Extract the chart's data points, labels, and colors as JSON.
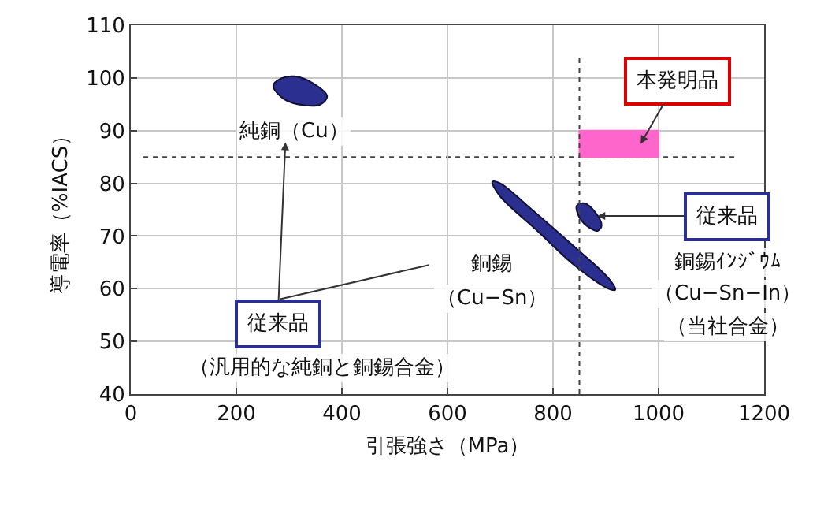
{
  "chart_data": {
    "type": "area",
    "xlabel": "引張強さ（MPa）",
    "ylabel": "導電率（%IACS）",
    "xlim": [
      0,
      1200
    ],
    "xticks": [
      0,
      200,
      400,
      600,
      800,
      1000,
      1200
    ],
    "ylim": [
      40,
      110
    ],
    "yticks": [
      40,
      50,
      60,
      70,
      80,
      90,
      100,
      110
    ],
    "grid": true,
    "series": [
      {
        "color": "#2b2f8f",
        "x": [
          270,
          285,
          310,
          345,
          372,
          360,
          330,
          290,
          270
        ],
        "values": [
          98.5,
          99.9,
          100.3,
          99,
          96.5,
          95,
          94.8,
          96,
          98.5
        ]
      },
      {
        "color": "#2b2f8f",
        "x": [
          685,
          700,
          760,
          840,
          905,
          918,
          905,
          840,
          770,
          700,
          685
        ],
        "values": [
          80.3,
          80,
          75,
          68,
          62,
          59.8,
          60,
          64.5,
          71,
          77.5,
          80.3
        ]
      },
      {
        "color": "#2b2f8f",
        "x": [
          845,
          860,
          880,
          892,
          885,
          870,
          850,
          845
        ],
        "values": [
          75.8,
          76.2,
          74.5,
          72,
          71,
          71.5,
          73.5,
          75.8
        ]
      },
      {
        "color": "#ff66cc",
        "x": [
          850,
          1000,
          1000,
          850,
          850
        ],
        "values": [
          85,
          85,
          90,
          90,
          85
        ]
      }
    ],
    "ref_lines": [
      {
        "axis": "y",
        "value": 85,
        "line_style": "dotted",
        "color": "#444444"
      },
      {
        "axis": "x",
        "value": 850,
        "line_style": "dotted",
        "color": "#444444"
      }
    ],
    "annotations": [
      "純銅（Cu）",
      "従来品",
      "銅錫",
      "（Cu−Sn）",
      "本発明品",
      {
        "text": "従来品",
        "x": 884,
        "y": 73.8
      },
      "銅錫ｲﾝｼﾞｳﾑ",
      "（Cu−Sn−In）",
      "（当社合金）",
      "（汎用的な純銅と銅錫合金）"
    ]
  }
}
